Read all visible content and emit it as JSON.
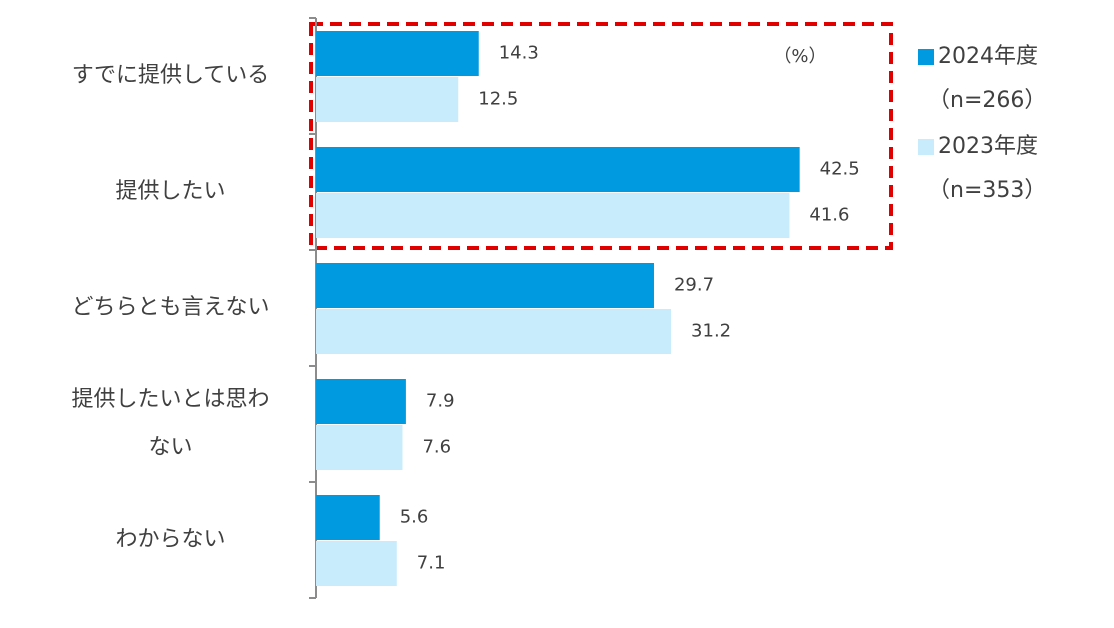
{
  "chart_data": {
    "type": "hbar",
    "unit": "（%）",
    "categories": [
      "すでに提供している",
      "提供したい",
      "どちらとも言えない",
      "提供したいとは思わない",
      "わからない"
    ],
    "series": [
      {
        "name": "2024年度",
        "sample": "（n=266）",
        "color": "#009ae0",
        "values": [
          14.3,
          42.5,
          29.7,
          7.9,
          5.6
        ]
      },
      {
        "name": "2023年度",
        "sample": "（n=353）",
        "color": "#c9ecfc",
        "values": [
          12.5,
          41.6,
          31.2,
          7.6,
          7.1
        ]
      }
    ],
    "xlim": [
      0,
      50
    ]
  }
}
